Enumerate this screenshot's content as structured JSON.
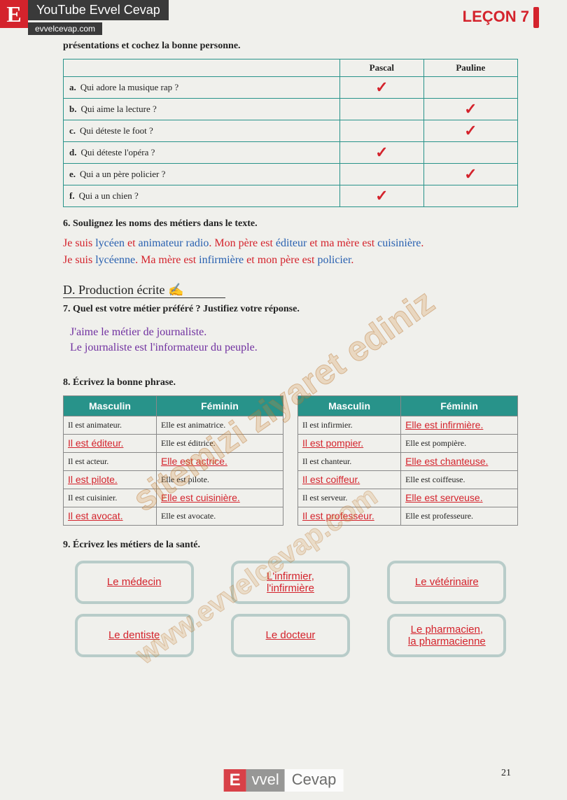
{
  "header": {
    "e": "E",
    "yt": "YouTube Evvel Cevap",
    "site": "evvelcevap.com",
    "lecon": "LEÇON 7"
  },
  "instr5": "présentations et cochez la bonne personne.",
  "table1": {
    "cols": [
      "",
      "Pascal",
      "Pauline"
    ],
    "rows": [
      {
        "l": "a.",
        "q": "Qui adore la musique rap ?",
        "pascal": "✓",
        "pauline": ""
      },
      {
        "l": "b.",
        "q": "Qui aime la lecture ?",
        "pascal": "",
        "pauline": "✓"
      },
      {
        "l": "c.",
        "q": "Qui déteste le foot ?",
        "pascal": "",
        "pauline": "✓"
      },
      {
        "l": "d.",
        "q": "Qui déteste l'opéra ?",
        "pascal": "✓",
        "pauline": ""
      },
      {
        "l": "e.",
        "q": "Qui a un père policier ?",
        "pascal": "",
        "pauline": "✓"
      },
      {
        "l": "f.",
        "q": "Qui a un chien ?",
        "pascal": "✓",
        "pauline": ""
      }
    ]
  },
  "instr6": "6. Soulignez les noms des métiers dans le texte.",
  "ex6": {
    "p1a": "Je suis ",
    "p1b": "lycéen",
    "p1c": " et ",
    "p1d": "animateur radio",
    "p1e": ". Mon père est ",
    "p1f": "éditeur",
    "p1g": " et ma mère est ",
    "p1h": "cuisinière",
    "p1i": ".",
    "p2a": "Je suis ",
    "p2b": "lycéenne",
    "p2c": ". Ma mère est ",
    "p2d": "infirmière",
    "p2e": " et mon père est ",
    "p2f": "policier",
    "p2g": "."
  },
  "sectionD": "D. Production écrite",
  "instr7": "7. Quel est votre métier préféré ? Justifiez votre réponse.",
  "ex7": {
    "l1": "J'aime le métier de journaliste.",
    "l2": "Le journaliste est l'informateur du peuple."
  },
  "instr8": "8. Écrivez la bonne phrase.",
  "t2headers": {
    "m": "Masculin",
    "f": "Féminin"
  },
  "t2L": [
    {
      "m": "Il est animateur.",
      "f": "Elle est animatrice.",
      "ma": false,
      "fa": false
    },
    {
      "m": "Il est éditeur.",
      "f": "Elle est éditrice.",
      "ma": true,
      "fa": false
    },
    {
      "m": "Il est acteur.",
      "f": "Elle est actrice.",
      "ma": false,
      "fa": true
    },
    {
      "m": "Il est pilote.",
      "f": "Elle est pilote.",
      "ma": true,
      "fa": false
    },
    {
      "m": "Il est cuisinier.",
      "f": "Elle est cuisinière.",
      "ma": false,
      "fa": true
    },
    {
      "m": "Il est avocat.",
      "f": "Elle est avocate.",
      "ma": true,
      "fa": false
    }
  ],
  "t2R": [
    {
      "m": "Il est infirmier.",
      "f": "Elle est infirmière.",
      "ma": false,
      "fa": true
    },
    {
      "m": "Il est pompier.",
      "f": "Elle est pompière.",
      "ma": true,
      "fa": false
    },
    {
      "m": "Il est chanteur.",
      "f": "Elle est chanteuse.",
      "ma": false,
      "fa": true
    },
    {
      "m": "Il est coiffeur.",
      "f": "Elle est coiffeuse.",
      "ma": true,
      "fa": false
    },
    {
      "m": "Il est serveur.",
      "f": "Elle est serveuse.",
      "ma": false,
      "fa": true
    },
    {
      "m": "Il est professeur.",
      "f": "Elle est professeure.",
      "ma": true,
      "fa": false
    }
  ],
  "instr9": "9. Écrivez les métiers de la santé.",
  "boxes1": [
    "Le médecin",
    "L'infirmier,\nl'infirmière",
    "Le vétérinaire"
  ],
  "boxes2": [
    "Le dentiste",
    "Le docteur",
    "Le pharmacien,\nla pharmacienne"
  ],
  "footer": {
    "e": "E",
    "vvel": "vvel",
    "cevap": "Cevap"
  },
  "pageNum": "21",
  "wm1": "sitemizi ziyaret ediniz",
  "wm2": "www.evvelcevap.com"
}
